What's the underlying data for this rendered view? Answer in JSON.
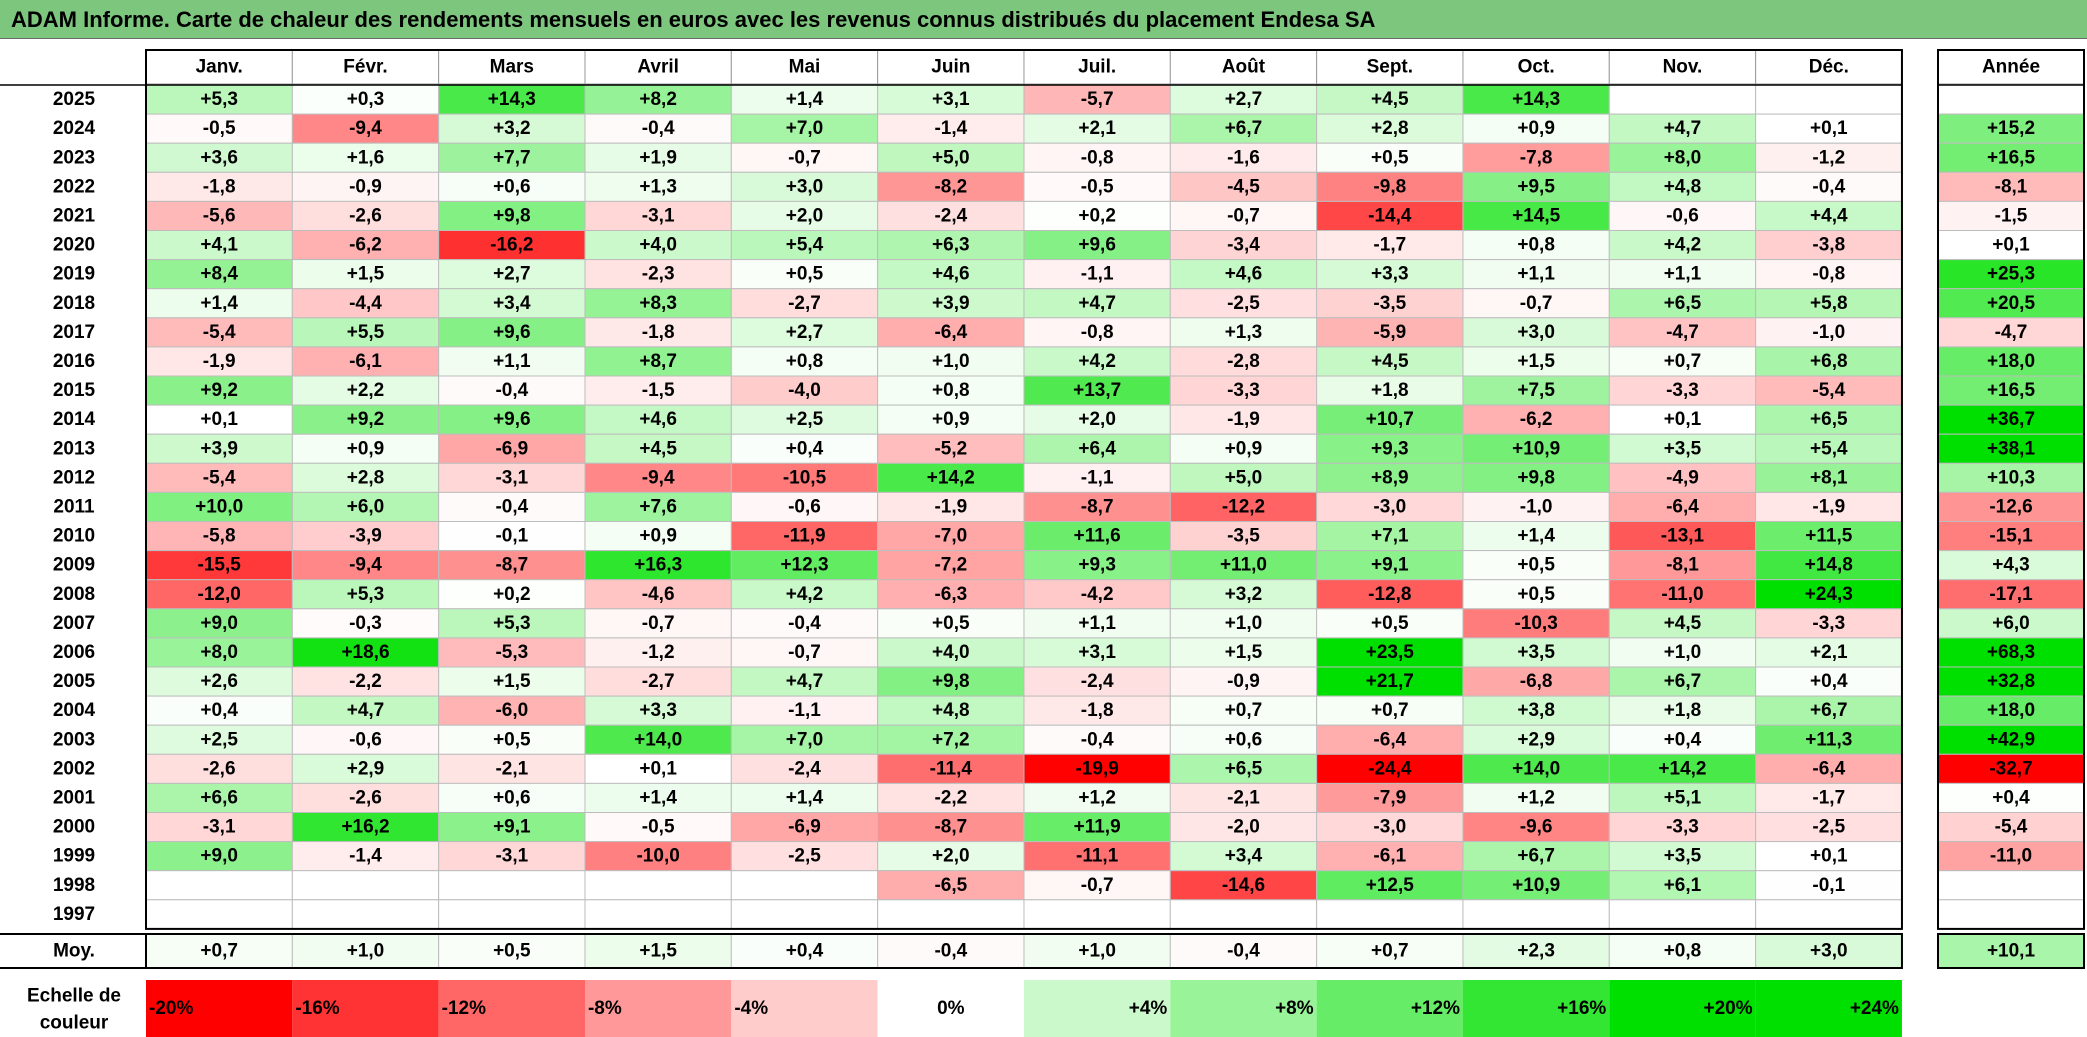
{
  "title": "ADAM Informe. Carte de chaleur des rendements mensuels en euros avec les revenus connus distribués du placement Endesa SA",
  "chart_data": {
    "type": "heatmap",
    "months": [
      "Janv.",
      "Févr.",
      "Mars",
      "Avril",
      "Mai",
      "Juin",
      "Juil.",
      "Août",
      "Sept.",
      "Oct.",
      "Nov.",
      "Déc."
    ],
    "year_header": "Année",
    "average_label": "Moy.",
    "rows": [
      {
        "year": "2025",
        "months": [
          "+5,3",
          "+0,3",
          "+14,3",
          "+8,2",
          "+1,4",
          "+3,1",
          "-5,7",
          "+2,7",
          "+4,5",
          "+14,3",
          "",
          ""
        ],
        "annual": ""
      },
      {
        "year": "2024",
        "months": [
          "-0,5",
          "-9,4",
          "+3,2",
          "-0,4",
          "+7,0",
          "-1,4",
          "+2,1",
          "+6,7",
          "+2,8",
          "+0,9",
          "+4,7",
          "+0,1"
        ],
        "annual": "+15,2"
      },
      {
        "year": "2023",
        "months": [
          "+3,6",
          "+1,6",
          "+7,7",
          "+1,9",
          "-0,7",
          "+5,0",
          "-0,8",
          "-1,6",
          "+0,5",
          "-7,8",
          "+8,0",
          "-1,2"
        ],
        "annual": "+16,5"
      },
      {
        "year": "2022",
        "months": [
          "-1,8",
          "-0,9",
          "+0,6",
          "+1,3",
          "+3,0",
          "-8,2",
          "-0,5",
          "-4,5",
          "-9,8",
          "+9,5",
          "+4,8",
          "-0,4"
        ],
        "annual": "-8,1"
      },
      {
        "year": "2021",
        "months": [
          "-5,6",
          "-2,6",
          "+9,8",
          "-3,1",
          "+2,0",
          "-2,4",
          "+0,2",
          "-0,7",
          "-14,4",
          "+14,5",
          "-0,6",
          "+4,4"
        ],
        "annual": "-1,5"
      },
      {
        "year": "2020",
        "months": [
          "+4,1",
          "-6,2",
          "-16,2",
          "+4,0",
          "+5,4",
          "+6,3",
          "+9,6",
          "-3,4",
          "-1,7",
          "+0,8",
          "+4,2",
          "-3,8"
        ],
        "annual": "+0,1"
      },
      {
        "year": "2019",
        "months": [
          "+8,4",
          "+1,5",
          "+2,7",
          "-2,3",
          "+0,5",
          "+4,6",
          "-1,1",
          "+4,6",
          "+3,3",
          "+1,1",
          "+1,1",
          "-0,8"
        ],
        "annual": "+25,3"
      },
      {
        "year": "2018",
        "months": [
          "+1,4",
          "-4,4",
          "+3,4",
          "+8,3",
          "-2,7",
          "+3,9",
          "+4,7",
          "-2,5",
          "-3,5",
          "-0,7",
          "+6,5",
          "+5,8"
        ],
        "annual": "+20,5"
      },
      {
        "year": "2017",
        "months": [
          "-5,4",
          "+5,5",
          "+9,6",
          "-1,8",
          "+2,7",
          "-6,4",
          "-0,8",
          "+1,3",
          "-5,9",
          "+3,0",
          "-4,7",
          "-1,0"
        ],
        "annual": "-4,7"
      },
      {
        "year": "2016",
        "months": [
          "-1,9",
          "-6,1",
          "+1,1",
          "+8,7",
          "+0,8",
          "+1,0",
          "+4,2",
          "-2,8",
          "+4,5",
          "+1,5",
          "+0,7",
          "+6,8"
        ],
        "annual": "+18,0"
      },
      {
        "year": "2015",
        "months": [
          "+9,2",
          "+2,2",
          "-0,4",
          "-1,5",
          "-4,0",
          "+0,8",
          "+13,7",
          "-3,3",
          "+1,8",
          "+7,5",
          "-3,3",
          "-5,4"
        ],
        "annual": "+16,5"
      },
      {
        "year": "2014",
        "months": [
          "+0,1",
          "+9,2",
          "+9,6",
          "+4,6",
          "+2,5",
          "+0,9",
          "+2,0",
          "-1,9",
          "+10,7",
          "-6,2",
          "+0,1",
          "+6,5"
        ],
        "annual": "+36,7"
      },
      {
        "year": "2013",
        "months": [
          "+3,9",
          "+0,9",
          "-6,9",
          "+4,5",
          "+0,4",
          "-5,2",
          "+6,4",
          "+0,9",
          "+9,3",
          "+10,9",
          "+3,5",
          "+5,4"
        ],
        "annual": "+38,1"
      },
      {
        "year": "2012",
        "months": [
          "-5,4",
          "+2,8",
          "-3,1",
          "-9,4",
          "-10,5",
          "+14,2",
          "-1,1",
          "+5,0",
          "+8,9",
          "+9,8",
          "-4,9",
          "+8,1"
        ],
        "annual": "+10,3"
      },
      {
        "year": "2011",
        "months": [
          "+10,0",
          "+6,0",
          "-0,4",
          "+7,6",
          "-0,6",
          "-1,9",
          "-8,7",
          "-12,2",
          "-3,0",
          "-1,0",
          "-6,4",
          "-1,9"
        ],
        "annual": "-12,6"
      },
      {
        "year": "2010",
        "months": [
          "-5,8",
          "-3,9",
          "-0,1",
          "+0,9",
          "-11,9",
          "-7,0",
          "+11,6",
          "-3,5",
          "+7,1",
          "+1,4",
          "-13,1",
          "+11,5"
        ],
        "annual": "-15,1"
      },
      {
        "year": "2009",
        "months": [
          "-15,5",
          "-9,4",
          "-8,7",
          "+16,3",
          "+12,3",
          "-7,2",
          "+9,3",
          "+11,0",
          "+9,1",
          "+0,5",
          "-8,1",
          "+14,8"
        ],
        "annual": "+4,3"
      },
      {
        "year": "2008",
        "months": [
          "-12,0",
          "+5,3",
          "+0,2",
          "-4,6",
          "+4,2",
          "-6,3",
          "-4,2",
          "+3,2",
          "-12,8",
          "+0,5",
          "-11,0",
          "+24,3"
        ],
        "annual": "-17,1"
      },
      {
        "year": "2007",
        "months": [
          "+9,0",
          "-0,3",
          "+5,3",
          "-0,7",
          "-0,4",
          "+0,5",
          "+1,1",
          "+1,0",
          "+0,5",
          "-10,3",
          "+4,5",
          "-3,3"
        ],
        "annual": "+6,0"
      },
      {
        "year": "2006",
        "months": [
          "+8,0",
          "+18,6",
          "-5,3",
          "-1,2",
          "-0,7",
          "+4,0",
          "+3,1",
          "+1,5",
          "+23,5",
          "+3,5",
          "+1,0",
          "+2,1"
        ],
        "annual": "+68,3"
      },
      {
        "year": "2005",
        "months": [
          "+2,6",
          "-2,2",
          "+1,5",
          "-2,7",
          "+4,7",
          "+9,8",
          "-2,4",
          "-0,9",
          "+21,7",
          "-6,8",
          "+6,7",
          "+0,4"
        ],
        "annual": "+32,8"
      },
      {
        "year": "2004",
        "months": [
          "+0,4",
          "+4,7",
          "-6,0",
          "+3,3",
          "-1,1",
          "+4,8",
          "-1,8",
          "+0,7",
          "+0,7",
          "+3,8",
          "+1,8",
          "+6,7"
        ],
        "annual": "+18,0"
      },
      {
        "year": "2003",
        "months": [
          "+2,5",
          "-0,6",
          "+0,5",
          "+14,0",
          "+7,0",
          "+7,2",
          "-0,4",
          "+0,6",
          "-6,4",
          "+2,9",
          "+0,4",
          "+11,3"
        ],
        "annual": "+42,9"
      },
      {
        "year": "2002",
        "months": [
          "-2,6",
          "+2,9",
          "-2,1",
          "+0,1",
          "-2,4",
          "-11,4",
          "-19,9",
          "+6,5",
          "-24,4",
          "+14,0",
          "+14,2",
          "-6,4"
        ],
        "annual": "-32,7"
      },
      {
        "year": "2001",
        "months": [
          "+6,6",
          "-2,6",
          "+0,6",
          "+1,4",
          "+1,4",
          "-2,2",
          "+1,2",
          "-2,1",
          "-7,9",
          "+1,2",
          "+5,1",
          "-1,7"
        ],
        "annual": "+0,4"
      },
      {
        "year": "2000",
        "months": [
          "-3,1",
          "+16,2",
          "+9,1",
          "-0,5",
          "-6,9",
          "-8,7",
          "+11,9",
          "-2,0",
          "-3,0",
          "-9,6",
          "-3,3",
          "-2,5"
        ],
        "annual": "-5,4"
      },
      {
        "year": "1999",
        "months": [
          "+9,0",
          "-1,4",
          "-3,1",
          "-10,0",
          "-2,5",
          "+2,0",
          "-11,1",
          "+3,4",
          "-6,1",
          "+6,7",
          "+3,5",
          "+0,1"
        ],
        "annual": "-11,0"
      },
      {
        "year": "1998",
        "months": [
          "",
          "",
          "",
          "",
          "",
          "-6,5",
          "-0,7",
          "-14,6",
          "+12,5",
          "+10,9",
          "+6,1",
          "-0,1"
        ],
        "annual": ""
      },
      {
        "year": "1997",
        "months": [
          "",
          "",
          "",
          "",
          "",
          "",
          "",
          "",
          "",
          "",
          "",
          ""
        ],
        "annual": ""
      }
    ],
    "averages": {
      "months": [
        "+0,7",
        "+1,0",
        "+0,5",
        "+1,5",
        "+0,4",
        "-0,4",
        "+1,0",
        "-0,4",
        "+0,7",
        "+2,3",
        "+0,8",
        "+3,0"
      ],
      "annual": "+10,1"
    },
    "scale": {
      "label_line1": "Echelle de",
      "label_line2": "couleur",
      "steps": [
        {
          "label": "-20%",
          "value": -20
        },
        {
          "label": "-16%",
          "value": -16
        },
        {
          "label": "-12%",
          "value": -12
        },
        {
          "label": "-8%",
          "value": -8
        },
        {
          "label": "-4%",
          "value": -4
        },
        {
          "label": "0%",
          "value": 0
        },
        {
          "label": "+4%",
          "value": 4
        },
        {
          "label": "+8%",
          "value": 8
        },
        {
          "label": "+12%",
          "value": 12
        },
        {
          "label": "+16%",
          "value": 16
        },
        {
          "label": "+20%",
          "value": 20
        },
        {
          "label": "+24%",
          "value": 24
        }
      ]
    },
    "colors": {
      "title_bar": "#7cc67d",
      "negative_max": "#ff0000",
      "neutral": "#ffffff",
      "positive_max": "#00e000"
    }
  }
}
